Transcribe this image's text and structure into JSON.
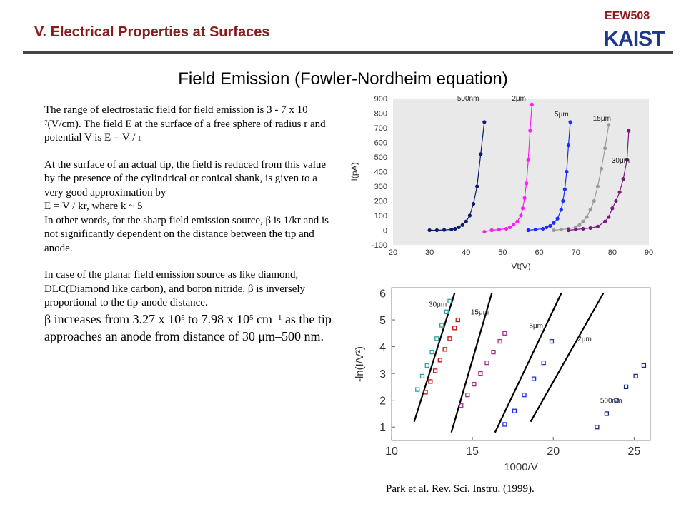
{
  "header": {
    "section_title": "V. Electrical Properties at Surfaces",
    "course_code": "EEW508",
    "logo_text": "KAIST"
  },
  "title": "Field Emission  (Fowler-Nordheim equation)",
  "body": {
    "p1_pre": "The range of electrostatic field for field emission is 3 - 7 x 10 ",
    "p1_sup": "7",
    "p1_post": "(V/cm). The field E at the surface of a free sphere of radius r and potential V is E = V / r",
    "p2": "At the surface of an actual tip, the field is reduced from this value by the presence of the cylindrical or conical shank, is given to a very good approximation by",
    "p3": "E = V / kr,  where k ~ 5",
    "p4": "In other words, for the sharp field emission source, β is 1/kr and is not significantly dependent on  the distance between the tip and anode.",
    "p5": "In case of the planar field emission source as like diamond, DLC(Diamond like carbon), and boron nitride, β is inversely proportional to the tip-anode distance.",
    "p6_a": "β increases from 3.27 x 10",
    "p6_sup1": "5",
    "p6_b": " to 7.98 x 10",
    "p6_sup2": "5",
    "p6_c": " cm ",
    "p6_sup3": "-1",
    "p6_d": " as the tip approaches an anode from distance of 30 μm–500 nm."
  },
  "citation": "Park et al. Rev. Sci. Instru. (1999).",
  "chart_data": [
    {
      "type": "scatter",
      "title": "",
      "xlabel": "Vt(V)",
      "ylabel": "I(pA)",
      "xlim": [
        20,
        90
      ],
      "ylim": [
        -100,
        900
      ],
      "xticks": [
        20,
        30,
        40,
        50,
        60,
        70,
        80,
        90
      ],
      "yticks": [
        -100,
        0,
        100,
        200,
        300,
        400,
        500,
        600,
        700,
        800,
        900
      ],
      "grid": false,
      "series": [
        {
          "name": "500nm",
          "color": "#0b1c70",
          "x": [
            30,
            32,
            34,
            36,
            37,
            38,
            39,
            40,
            41,
            42,
            43,
            44,
            45
          ],
          "y": [
            0,
            0,
            2,
            5,
            10,
            20,
            35,
            60,
            100,
            180,
            300,
            520,
            740
          ]
        },
        {
          "name": "2μm",
          "color": "#ff1aff",
          "x": [
            45,
            47,
            49,
            51,
            52,
            53,
            54,
            55,
            55.5,
            56,
            56.5,
            57,
            57.5,
            58
          ],
          "y": [
            -10,
            0,
            5,
            10,
            20,
            40,
            60,
            100,
            150,
            220,
            320,
            480,
            680,
            860
          ]
        },
        {
          "name": "5μm",
          "color": "#1a2cff",
          "x": [
            57,
            59,
            61,
            62,
            63,
            64,
            65,
            66,
            66.5,
            67,
            67.5,
            68,
            68.5
          ],
          "y": [
            0,
            5,
            10,
            20,
            30,
            50,
            80,
            140,
            200,
            280,
            400,
            580,
            740
          ]
        },
        {
          "name": "15μm",
          "color": "#9a9a9a",
          "x": [
            64,
            66,
            68,
            70,
            71,
            72,
            73,
            74,
            75,
            76,
            77,
            78,
            79
          ],
          "y": [
            0,
            5,
            10,
            20,
            35,
            60,
            90,
            140,
            200,
            300,
            420,
            560,
            720
          ]
        },
        {
          "name": "30μm",
          "color": "#7a1a7a",
          "x": [
            68,
            70,
            72,
            74,
            76,
            78,
            79,
            80,
            81,
            82,
            83,
            84,
            84.5
          ],
          "y": [
            0,
            5,
            10,
            15,
            25,
            60,
            90,
            150,
            200,
            260,
            350,
            480,
            680
          ]
        }
      ],
      "annotations": [
        "500nm",
        "2μm",
        "5μm",
        "15μm",
        "30μm"
      ]
    },
    {
      "type": "scatter",
      "title": "",
      "xlabel": "1000/V",
      "ylabel": "-ln(I/V²)",
      "xlim": [
        10,
        26
      ],
      "ylim": [
        0.5,
        6.2
      ],
      "xticks": [
        10,
        15,
        20,
        25
      ],
      "yticks": [
        1,
        2,
        3,
        4,
        5,
        6
      ],
      "grid": false,
      "series": [
        {
          "name": "30μm",
          "color": "#2aa6a0",
          "x": [
            11.6,
            11.9,
            12.2,
            12.5,
            12.8,
            13.1,
            13.4,
            13.6
          ],
          "y": [
            2.4,
            2.9,
            3.3,
            3.8,
            4.3,
            4.8,
            5.3,
            5.7
          ]
        },
        {
          "name": "",
          "color": "#c01010",
          "x": [
            12.1,
            12.4,
            12.7,
            13.0,
            13.3,
            13.6,
            13.9,
            14.1
          ],
          "y": [
            2.3,
            2.7,
            3.1,
            3.5,
            3.9,
            4.3,
            4.7,
            5.0
          ]
        },
        {
          "name": "15μm",
          "color": "#a03090",
          "x": [
            14.3,
            14.7,
            15.1,
            15.5,
            15.9,
            16.3,
            16.7,
            17.0
          ],
          "y": [
            1.8,
            2.2,
            2.6,
            3.0,
            3.4,
            3.8,
            4.2,
            4.5
          ]
        },
        {
          "name": "5μm",
          "color": "#1a2cff",
          "x": [
            17.0,
            17.6,
            18.2,
            18.8,
            19.4,
            19.9
          ],
          "y": [
            1.1,
            1.6,
            2.2,
            2.8,
            3.4,
            4.2
          ]
        },
        {
          "name": "500nm",
          "color": "#1a2a80",
          "x": [
            22.7,
            23.3,
            23.9,
            24.5,
            25.1,
            25.6
          ],
          "y": [
            1.0,
            1.5,
            2.0,
            2.5,
            2.9,
            3.3
          ]
        }
      ],
      "fit_lines": [
        {
          "x": [
            11.4,
            13.9
          ],
          "y": [
            1.2,
            6.0
          ]
        },
        {
          "x": [
            13.7,
            16.2
          ],
          "y": [
            0.8,
            6.0
          ]
        },
        {
          "x": [
            16.4,
            20.5
          ],
          "y": [
            0.8,
            6.0
          ]
        },
        {
          "x": [
            18.6,
            23.1
          ],
          "y": [
            1.2,
            6.0
          ]
        }
      ],
      "annotations": [
        "30μm",
        "15μm",
        "5μm",
        "2μm",
        "500nm"
      ]
    }
  ]
}
